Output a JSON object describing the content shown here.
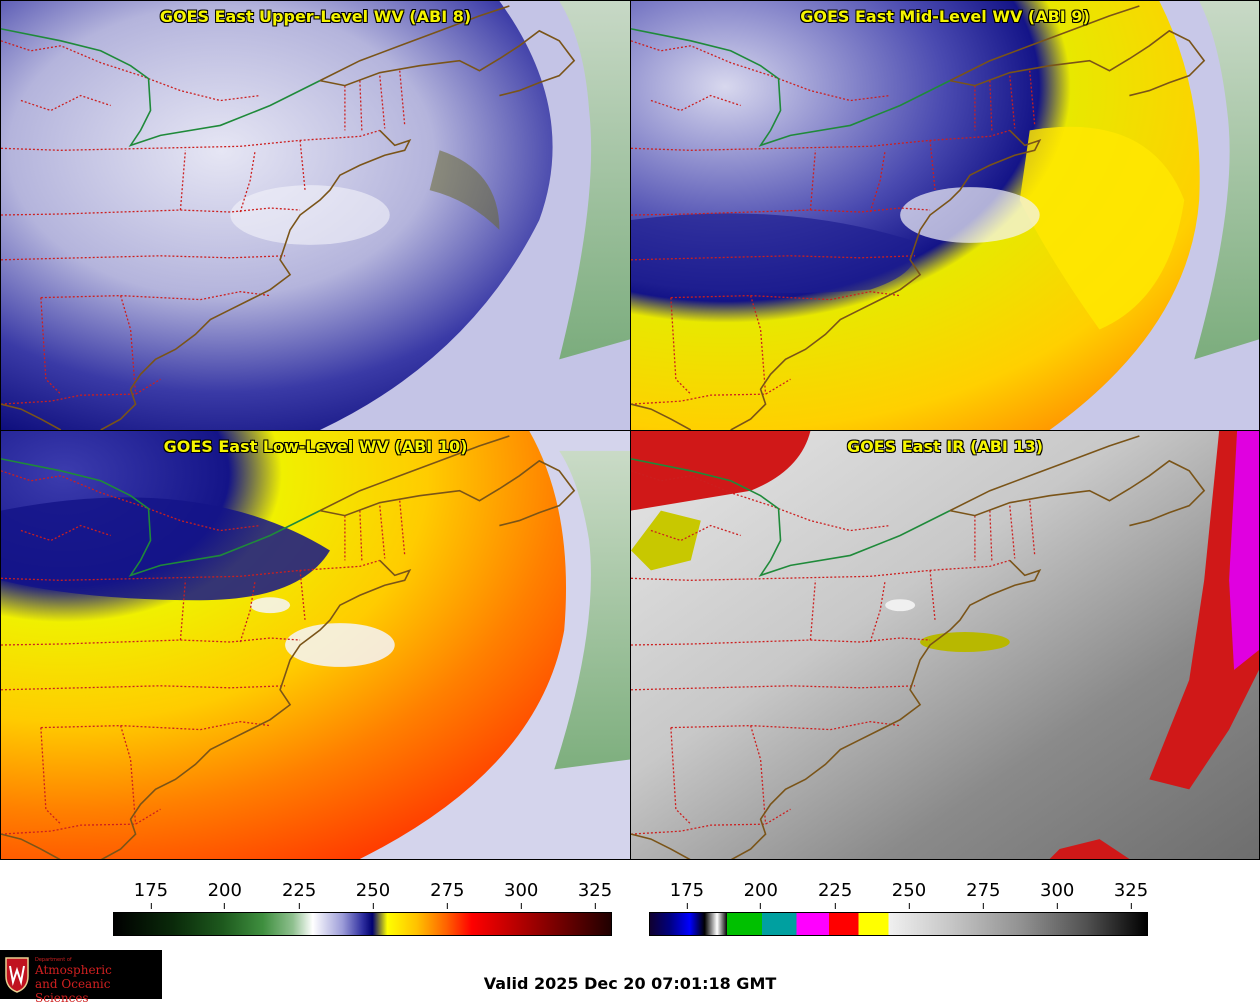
{
  "panels": [
    {
      "title": "GOES East Upper-Level WV (ABI 8)"
    },
    {
      "title": "GOES East Mid-Level WV (ABI 9)"
    },
    {
      "title": "GOES East Low-Level WV (ABI 10)"
    },
    {
      "title": "GOES East IR (ABI 13)"
    }
  ],
  "colorbars": {
    "wv_ticks": [
      "175",
      "200",
      "225",
      "250",
      "275",
      "300",
      "325"
    ],
    "ir_ticks": [
      "175",
      "200",
      "225",
      "250",
      "275",
      "300",
      "325"
    ]
  },
  "logo": {
    "department": "Department of",
    "line1": "Atmospheric",
    "line2": "and Oceanic Sciences"
  },
  "footer": {
    "valid": "Valid 2025 Dec 20 07:01:18 GMT"
  },
  "colors": {
    "title": "#f5f500",
    "border": "#cc1f1f",
    "coast": "#7a5418",
    "canada_border": "#1f8a3a"
  }
}
